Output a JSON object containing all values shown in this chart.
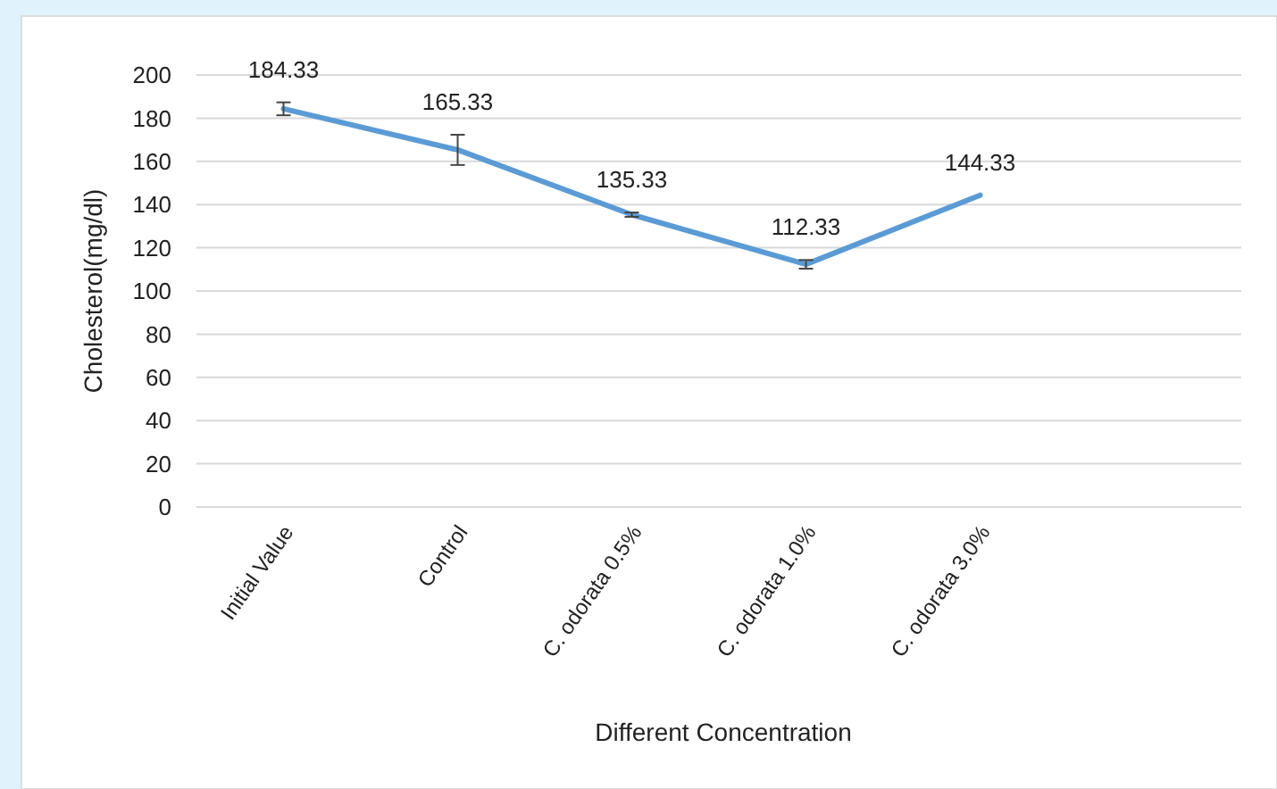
{
  "chart_data": {
    "type": "line",
    "xlabel": "Different Concentration",
    "ylabel": "Cholesterol(mg/dl)",
    "categories": [
      "Initial Value",
      "Control",
      "C. odorata 0.5%",
      "C. odorata 1.0%",
      "C. odorata 3.0%",
      null
    ],
    "series": [
      {
        "color": "#5b9bd5",
        "values": [
          184.33,
          165.33,
          135.33,
          112.33,
          144.33,
          null
        ],
        "errors": [
          3,
          7,
          1,
          2,
          null,
          null
        ]
      }
    ],
    "ylim": [
      0,
      200
    ],
    "yticks": [
      0,
      20,
      40,
      60,
      80,
      100,
      120,
      140,
      160,
      180,
      200
    ],
    "grid": "y",
    "data_labels": true,
    "marker": "none",
    "line_style": "solid"
  }
}
